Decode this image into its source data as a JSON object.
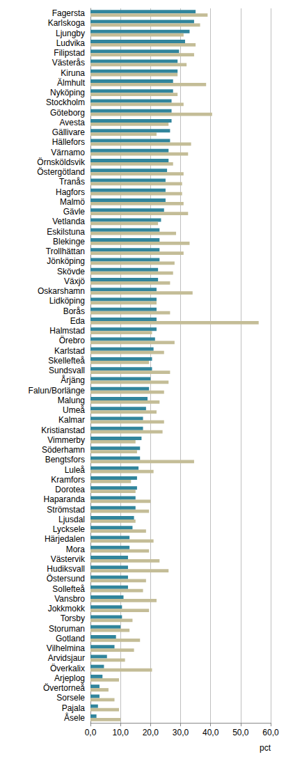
{
  "chart_data": {
    "type": "bar",
    "orientation": "horizontal",
    "categories": [
      "Fagersta",
      "Karlskoga",
      "Ljungby",
      "Ludvika",
      "Filipstad",
      "Västerås",
      "Kiruna",
      "Älmhult",
      "Nyköping",
      "Stockholm",
      "Göteborg",
      "Avesta",
      "Gällivare",
      "Hällefors",
      "Värnamo",
      "Örnsköldsvik",
      "Östergötland",
      "Tranås",
      "Hagfors",
      "Malmö",
      "Gävle",
      "Vetlanda",
      "Eskilstuna",
      "Blekinge",
      "Trollhättan",
      "Jönköping",
      "Skövde",
      "Växjö",
      "Oskarshamn",
      "Lidköping",
      "Borås",
      "Eda",
      "Halmstad",
      "Örebro",
      "Karlstad",
      "Skellefteå",
      "Sundsvall",
      "Årjäng",
      "Falun/Borlänge",
      "Malung",
      "Umeå",
      "Kalmar",
      "Kristianstad",
      "Vimmerby",
      "Söderhamn",
      "Bengtsfors",
      "Luleå",
      "Kramfors",
      "Dorotea",
      "Haparanda",
      "Strömstad",
      "Ljusdal",
      "Lycksele",
      "Härjedalen",
      "Mora",
      "Västervik",
      "Hudiksvall",
      "Östersund",
      "Sollefteå",
      "Vansbro",
      "Jokkmokk",
      "Torsby",
      "Storuman",
      "Gotland",
      "Vilhelmina",
      "Arvidsjaur",
      "Överkalix",
      "Arjeplog",
      "Övertorneå",
      "Sorsele",
      "Pajala",
      "Åsele"
    ],
    "series": [
      {
        "color": "#31859C",
        "values": [
          35,
          34.5,
          33,
          31.5,
          29.5,
          29,
          29,
          27.5,
          27.5,
          27,
          27,
          27,
          26.5,
          26.5,
          26,
          26,
          25.5,
          25,
          25,
          25,
          24.5,
          23.5,
          23,
          23,
          23,
          23,
          22.5,
          22.5,
          22,
          22,
          22,
          22,
          22,
          21.5,
          21,
          20.5,
          20.5,
          20,
          19.5,
          19,
          18.5,
          17.5,
          17.5,
          17,
          16.5,
          16.5,
          16,
          15.5,
          15.5,
          15,
          15,
          14.5,
          14,
          13,
          13,
          12.5,
          12.5,
          12.5,
          12.5,
          11,
          10.5,
          10.5,
          10,
          8.5,
          8,
          5.5,
          4.5,
          4,
          3,
          3,
          2.5,
          2
        ]
      },
      {
        "color": "#C4BD97",
        "values": [
          39,
          36.5,
          31,
          35,
          34.5,
          32,
          29,
          38.5,
          29,
          31,
          40.5,
          26,
          22,
          33.5,
          32.5,
          27.5,
          31,
          30.5,
          30.5,
          31,
          32.5,
          22.5,
          28.5,
          33,
          31,
          28,
          27.5,
          26.5,
          34,
          22,
          26.5,
          56,
          20.5,
          28,
          24.5,
          19.5,
          26.5,
          26,
          24.5,
          23,
          22,
          24.5,
          24,
          15,
          15.5,
          34.5,
          21,
          13.5,
          15,
          20,
          19.5,
          15,
          18.5,
          21,
          19.5,
          23,
          26,
          18.5,
          17.5,
          22,
          19.5,
          14,
          13,
          16.5,
          14.5,
          11.5,
          20.5,
          9.5,
          6,
          8,
          9.5,
          10
        ]
      }
    ],
    "xlim": [
      0,
      60
    ],
    "xticks": [
      {
        "value": 0,
        "label": "0,0"
      },
      {
        "value": 10,
        "label": "10,0"
      },
      {
        "value": 20,
        "label": "20,0"
      },
      {
        "value": 30,
        "label": "30,0"
      },
      {
        "value": 40,
        "label": "40,0"
      },
      {
        "value": 50,
        "label": "50,0"
      },
      {
        "value": 60,
        "label": "60,0"
      }
    ],
    "xlabel": "pct",
    "grid": true
  }
}
